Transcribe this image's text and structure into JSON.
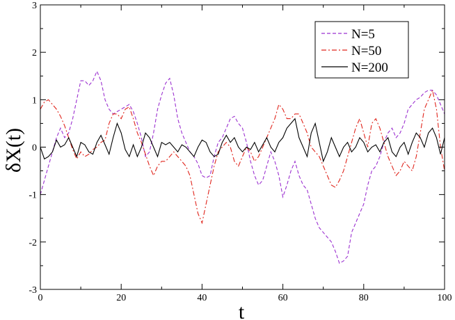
{
  "chart_data": {
    "type": "line",
    "title": "",
    "xlabel": "t",
    "ylabel": "δX(t)",
    "xlim": [
      0,
      100
    ],
    "ylim": [
      -3,
      3
    ],
    "xticks": [
      0,
      20,
      40,
      60,
      80,
      100
    ],
    "yticks": [
      -3,
      -2,
      -1,
      0,
      1,
      2,
      3
    ],
    "grid": false,
    "legend": "top-right",
    "series": [
      {
        "name": "N=5",
        "color": "#9b30d0",
        "style": "dashed",
        "x": [
          0,
          1,
          2,
          3,
          4,
          5,
          6,
          7,
          8,
          9,
          10,
          11,
          12,
          13,
          14,
          15,
          16,
          17,
          18,
          19,
          20,
          21,
          22,
          23,
          24,
          25,
          26,
          27,
          28,
          29,
          30,
          31,
          32,
          33,
          34,
          35,
          36,
          37,
          38,
          39,
          40,
          41,
          42,
          43,
          44,
          45,
          46,
          47,
          48,
          49,
          50,
          51,
          52,
          53,
          54,
          55,
          56,
          57,
          58,
          59,
          60,
          61,
          62,
          63,
          64,
          65,
          66,
          67,
          68,
          69,
          70,
          71,
          72,
          73,
          74,
          75,
          76,
          77,
          78,
          79,
          80,
          81,
          82,
          83,
          84,
          85,
          86,
          87,
          88,
          89,
          90,
          91,
          92,
          93,
          94,
          95,
          96,
          97,
          98,
          99,
          100
        ],
        "y": [
          -1.0,
          -0.7,
          -0.4,
          -0.1,
          0.2,
          0.4,
          0.2,
          0.3,
          0.6,
          1.0,
          1.4,
          1.4,
          1.3,
          1.4,
          1.6,
          1.4,
          1.0,
          0.8,
          0.7,
          0.75,
          0.8,
          0.85,
          0.9,
          0.75,
          0.5,
          0.2,
          -0.2,
          -0.1,
          0.3,
          0.8,
          1.1,
          1.35,
          1.45,
          1.1,
          0.6,
          0.3,
          0.1,
          -0.1,
          -0.2,
          -0.35,
          -0.6,
          -0.65,
          -0.6,
          -0.2,
          0.1,
          0.2,
          0.4,
          0.6,
          0.65,
          0.5,
          0.4,
          0.1,
          -0.3,
          -0.6,
          -0.8,
          -0.7,
          -0.4,
          -0.1,
          -0.3,
          -0.6,
          -1.05,
          -0.8,
          -0.5,
          -0.3,
          -0.6,
          -0.8,
          -0.9,
          -1.2,
          -1.5,
          -1.7,
          -1.8,
          -1.9,
          -2.0,
          -2.2,
          -2.45,
          -2.4,
          -2.3,
          -1.8,
          -1.6,
          -1.4,
          -1.2,
          -0.8,
          -0.5,
          -0.4,
          -0.2,
          0.1,
          0.3,
          0.4,
          0.2,
          0.3,
          0.5,
          0.8,
          0.9,
          1.0,
          1.05,
          1.15,
          1.2,
          1.2,
          1.1,
          0.9,
          0.7
        ]
      },
      {
        "name": "N=50",
        "color": "#e0241b",
        "style": "dashdot",
        "x": [
          0,
          1,
          2,
          3,
          4,
          5,
          6,
          7,
          8,
          9,
          10,
          11,
          12,
          13,
          14,
          15,
          16,
          17,
          18,
          19,
          20,
          21,
          22,
          23,
          24,
          25,
          26,
          27,
          28,
          29,
          30,
          31,
          32,
          33,
          34,
          35,
          36,
          37,
          38,
          39,
          40,
          41,
          42,
          43,
          44,
          45,
          46,
          47,
          48,
          49,
          50,
          51,
          52,
          53,
          54,
          55,
          56,
          57,
          58,
          59,
          60,
          61,
          62,
          63,
          64,
          65,
          66,
          67,
          68,
          69,
          70,
          71,
          72,
          73,
          74,
          75,
          76,
          77,
          78,
          79,
          80,
          81,
          82,
          83,
          84,
          85,
          86,
          87,
          88,
          89,
          90,
          91,
          92,
          93,
          94,
          95,
          96,
          97,
          98,
          99,
          100
        ],
        "y": [
          0.8,
          0.95,
          1.0,
          0.9,
          0.8,
          0.65,
          0.45,
          0.2,
          -0.05,
          -0.25,
          -0.1,
          -0.2,
          -0.15,
          -0.05,
          0.0,
          0.1,
          0.15,
          0.5,
          0.7,
          0.7,
          0.6,
          0.8,
          0.85,
          0.6,
          0.3,
          0.1,
          -0.15,
          -0.4,
          -0.6,
          -0.4,
          -0.3,
          -0.3,
          -0.2,
          -0.1,
          -0.2,
          -0.3,
          -0.4,
          -0.6,
          -1.0,
          -1.4,
          -1.6,
          -1.2,
          -0.8,
          -0.4,
          -0.1,
          0.0,
          0.1,
          0.0,
          -0.3,
          -0.4,
          -0.2,
          0.0,
          -0.1,
          -0.3,
          -0.2,
          0.0,
          0.2,
          0.4,
          0.6,
          0.9,
          0.8,
          0.6,
          0.6,
          0.7,
          0.7,
          0.5,
          0.3,
          0.0,
          -0.1,
          -0.2,
          -0.4,
          -0.6,
          -0.8,
          -0.85,
          -0.7,
          -0.5,
          -0.2,
          0.1,
          0.4,
          0.6,
          0.3,
          0.0,
          0.5,
          0.6,
          0.4,
          0.1,
          -0.2,
          -0.4,
          -0.6,
          -0.5,
          -0.3,
          -0.4,
          -0.5,
          -0.2,
          0.3,
          0.8,
          1.0,
          1.2,
          0.8,
          0.0,
          -0.5
        ]
      },
      {
        "name": "N=200",
        "color": "#000000",
        "style": "solid",
        "x": [
          0,
          1,
          2,
          3,
          4,
          5,
          6,
          7,
          8,
          9,
          10,
          11,
          12,
          13,
          14,
          15,
          16,
          17,
          18,
          19,
          20,
          21,
          22,
          23,
          24,
          25,
          26,
          27,
          28,
          29,
          30,
          31,
          32,
          33,
          34,
          35,
          36,
          37,
          38,
          39,
          40,
          41,
          42,
          43,
          44,
          45,
          46,
          47,
          48,
          49,
          50,
          51,
          52,
          53,
          54,
          55,
          56,
          57,
          58,
          59,
          60,
          61,
          62,
          63,
          64,
          65,
          66,
          67,
          68,
          69,
          70,
          71,
          72,
          73,
          74,
          75,
          76,
          77,
          78,
          79,
          80,
          81,
          82,
          83,
          84,
          85,
          86,
          87,
          88,
          89,
          90,
          91,
          92,
          93,
          94,
          95,
          96,
          97,
          98,
          99,
          100
        ],
        "y": [
          0.0,
          -0.25,
          -0.2,
          -0.1,
          0.15,
          0.0,
          0.05,
          0.2,
          0.0,
          -0.2,
          0.1,
          0.05,
          -0.1,
          -0.15,
          0.1,
          0.25,
          0.05,
          -0.15,
          0.2,
          0.5,
          0.3,
          -0.05,
          -0.2,
          0.05,
          -0.2,
          0.0,
          0.3,
          0.2,
          0.0,
          -0.2,
          0.1,
          0.05,
          0.1,
          0.0,
          -0.1,
          0.05,
          0.0,
          -0.1,
          -0.2,
          0.0,
          0.15,
          0.1,
          -0.1,
          -0.2,
          -0.15,
          0.1,
          0.25,
          0.1,
          0.2,
          0.0,
          -0.1,
          0.0,
          -0.05,
          0.1,
          -0.1,
          0.05,
          0.2,
          0.0,
          -0.1,
          0.1,
          0.2,
          0.4,
          0.5,
          0.6,
          0.2,
          0.0,
          -0.2,
          0.3,
          0.5,
          0.1,
          -0.3,
          -0.1,
          0.2,
          0.0,
          -0.2,
          0.0,
          0.1,
          -0.1,
          0.0,
          0.2,
          0.1,
          -0.1,
          0.0,
          0.05,
          -0.1,
          0.1,
          0.2,
          -0.1,
          -0.2,
          0.0,
          0.1,
          -0.15,
          0.1,
          0.3,
          0.2,
          0.0,
          0.3,
          0.4,
          0.2,
          -0.15,
          0.2
        ]
      }
    ]
  }
}
